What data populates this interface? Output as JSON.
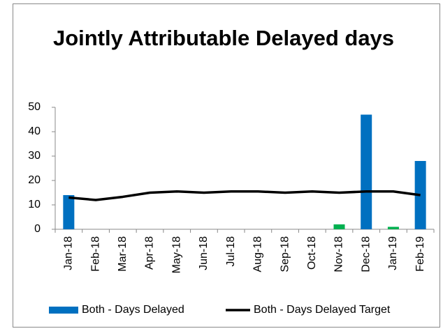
{
  "chart_data": {
    "type": "bar-line",
    "title": "Jointly Attributable Delayed days",
    "categories": [
      "Jan-18",
      "Feb-18",
      "Mar-18",
      "Apr-18",
      "May-18",
      "Jun-18",
      "Jul-18",
      "Aug-18",
      "Sep-18",
      "Oct-18",
      "Nov-18",
      "Dec-18",
      "Jan-19",
      "Feb-19"
    ],
    "series": [
      {
        "name": "Both - Days Delayed",
        "type": "bar",
        "color": "#0070c0",
        "colors": [
          "#0070c0",
          "#0070c0",
          "#0070c0",
          "#0070c0",
          "#0070c0",
          "#0070c0",
          "#0070c0",
          "#0070c0",
          "#0070c0",
          "#0070c0",
          "#00b050",
          "#0070c0",
          "#00b050",
          "#0070c0"
        ],
        "values": [
          14,
          0,
          0,
          0,
          0,
          0,
          0,
          0,
          0,
          0,
          2,
          47,
          1,
          28
        ]
      },
      {
        "name": "Both - Days Delayed Target",
        "type": "line",
        "color": "#000000",
        "values": [
          13,
          12,
          13.3,
          15,
          15.5,
          15,
          15.5,
          15.5,
          15,
          15.5,
          15,
          15.5,
          15.5,
          14
        ]
      }
    ],
    "ylim": [
      0,
      50
    ],
    "yticks": [
      0,
      10,
      20,
      30,
      40,
      50
    ],
    "grid": false,
    "legend": "bottom"
  }
}
